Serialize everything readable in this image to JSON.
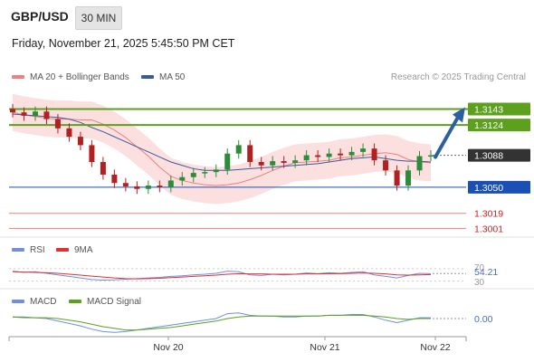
{
  "header": {
    "symbol": "GBP/USD",
    "timeframe": "30 MIN"
  },
  "datetime": "Friday, November 21, 2025 5:45:50 PM CET",
  "legend": {
    "bollinger": "MA 20 + Bollinger Bands",
    "ma50": "MA 50",
    "credit": "Research © 2025 Trading Central"
  },
  "rsi_panel": {
    "rsi_label": "RSI",
    "ma_label": "9MA",
    "level_high": "70",
    "level_low": "30",
    "value": "54.21"
  },
  "macd_panel": {
    "macd_label": "MACD",
    "signal_label": "MACD Signal",
    "value": "0.00"
  },
  "colors": {
    "bollinger": "#f08080",
    "ma50": "#3a5a9a",
    "resistance": "#5ca01e",
    "support": "#1a4fb5",
    "target_arrow": "#2c5fa0",
    "rsi": "#6f8fe0",
    "rsi_ma": "#e03030",
    "macd": "#6f8fe0",
    "macd_signal": "#5ca01e"
  },
  "chart_data": {
    "type": "candlestick",
    "instrument": "GBP/USD",
    "x_tick_labels": [
      "Nov 20",
      "Nov 21",
      "Nov 22"
    ],
    "ylim": [
      1.2995,
      1.3165
    ],
    "current_price": 1.3088,
    "levels": [
      {
        "value": 1.3143,
        "label": "1.3143",
        "kind": "resistance"
      },
      {
        "value": 1.3124,
        "label": "1.3124",
        "kind": "resistance"
      },
      {
        "value": 1.3088,
        "label": "1.3088",
        "kind": "current"
      },
      {
        "value": 1.305,
        "label": "1.3050",
        "kind": "support"
      },
      {
        "value": 1.3019,
        "label": "1.3019",
        "kind": "support"
      },
      {
        "value": 1.3001,
        "label": "1.3001",
        "kind": "support"
      }
    ],
    "series": [
      {
        "name": "MA 20 + Bollinger Bands",
        "values": [
          1.3139,
          1.3136,
          1.3134,
          1.3132,
          1.3131,
          1.3131,
          1.313,
          1.313,
          1.3125,
          1.3118,
          1.3109,
          1.3098,
          1.3087,
          1.3074,
          1.3063,
          1.3058,
          1.3055,
          1.3053,
          1.3052,
          1.3053,
          1.3055,
          1.3059,
          1.3064,
          1.307,
          1.3075,
          1.3079,
          1.308,
          1.3081,
          1.3082,
          1.3085,
          1.3086,
          1.3088,
          1.309,
          1.3091,
          1.3089,
          1.3083,
          1.308,
          1.3079
        ]
      },
      {
        "name": "MA 50",
        "values": [
          1.3137,
          1.3136,
          1.3135,
          1.3134,
          1.3133,
          1.3131,
          1.3127,
          1.3121,
          1.3116,
          1.311,
          1.3104,
          1.3098,
          1.3092,
          1.3086,
          1.308,
          1.3076,
          1.3072,
          1.307,
          1.307,
          1.307,
          1.3071,
          1.3072,
          1.3073,
          1.3074,
          1.3075,
          1.3076,
          1.3077,
          1.3078,
          1.308,
          1.3082,
          1.3084,
          1.3085,
          1.3086,
          1.3084,
          1.3082,
          1.3081,
          1.3081,
          1.308
        ]
      }
    ],
    "candles_close": [
      1.3139,
      1.3135,
      1.314,
      1.3131,
      1.312,
      1.311,
      1.31,
      1.308,
      1.3065,
      1.3055,
      1.3051,
      1.3048,
      1.3052,
      1.305,
      1.3058,
      1.3062,
      1.3067,
      1.3068,
      1.3071,
      1.309,
      1.31,
      1.308,
      1.3076,
      1.3081,
      1.3079,
      1.3082,
      1.3088,
      1.3086,
      1.309,
      1.3088,
      1.3092,
      1.3096,
      1.3082,
      1.307,
      1.3052,
      1.307,
      1.3087,
      1.3088
    ],
    "band_width": 0.0022,
    "projection_target": 1.3143,
    "rsi": {
      "ylim": [
        0,
        100
      ],
      "levels": [
        70,
        30
      ],
      "value": 54.21,
      "rsi": [
        62,
        58,
        60,
        55,
        50,
        45,
        40,
        35,
        33,
        34,
        36,
        38,
        40,
        42,
        45,
        47,
        50,
        52,
        55,
        62,
        60,
        50,
        48,
        52,
        50,
        52,
        56,
        54,
        57,
        55,
        58,
        60,
        50,
        45,
        40,
        48,
        55,
        54
      ],
      "ma9": [
        60,
        59,
        58,
        57,
        55,
        52,
        49,
        46,
        43,
        40,
        38,
        37,
        38,
        39,
        41,
        43,
        45,
        47,
        49,
        52,
        54,
        53,
        53,
        52,
        52,
        52,
        53,
        53,
        54,
        54,
        55,
        56,
        55,
        53,
        50,
        49,
        50,
        51
      ]
    },
    "macd": {
      "value": 0.0,
      "macd": [
        0.0002,
        0.0001,
        0.0001,
        0.0,
        -0.0003,
        -0.0006,
        -0.0009,
        -0.0013,
        -0.0016,
        -0.0017,
        -0.0016,
        -0.0014,
        -0.0012,
        -0.001,
        -0.0008,
        -0.0006,
        -0.0004,
        -0.0002,
        0.0,
        0.0006,
        0.0007,
        0.0004,
        0.0003,
        0.0003,
        0.0002,
        0.0002,
        0.0003,
        0.0003,
        0.0004,
        0.0004,
        0.0005,
        0.0005,
        0.0002,
        -0.0002,
        -0.0005,
        -0.0002,
        0.0001,
        0.0001
      ],
      "signal": [
        0.0002,
        0.0002,
        0.0001,
        0.0001,
        0.0,
        -0.0002,
        -0.0004,
        -0.0007,
        -0.001,
        -0.0012,
        -0.0014,
        -0.0014,
        -0.0013,
        -0.0012,
        -0.0011,
        -0.0009,
        -0.0007,
        -0.0005,
        -0.0003,
        0.0,
        0.0002,
        0.0003,
        0.0003,
        0.0003,
        0.0003,
        0.0003,
        0.0003,
        0.0003,
        0.0004,
        0.0004,
        0.0004,
        0.0004,
        0.0003,
        0.0002,
        0.0,
        -0.0001,
        0.0,
        0.0
      ]
    }
  }
}
